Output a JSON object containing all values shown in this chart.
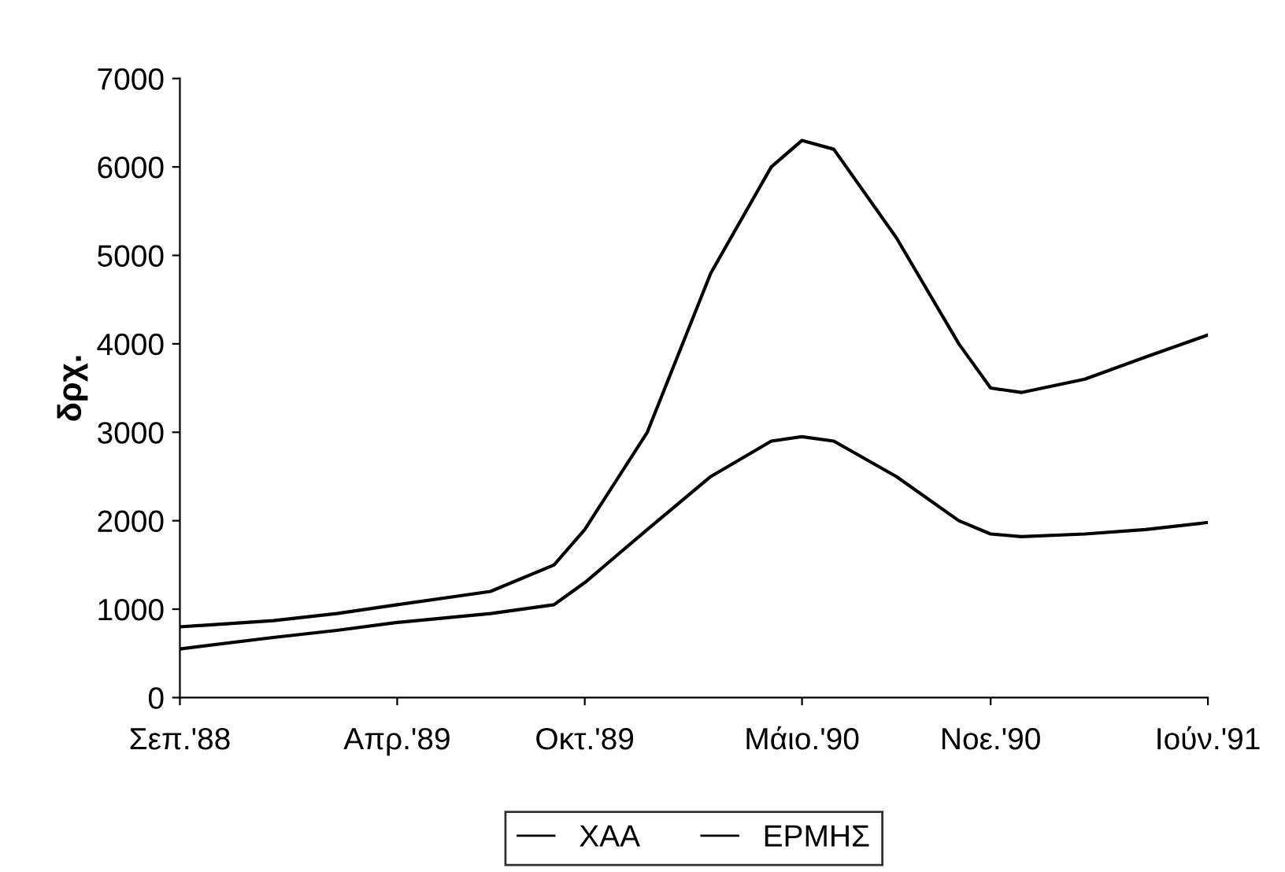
{
  "chart_data": {
    "type": "line",
    "ylabel": "δρχ.",
    "x": [
      "1988-09",
      "1988-12",
      "1989-02",
      "1989-04",
      "1989-07",
      "1989-09",
      "1989-10",
      "1989-12",
      "1990-02",
      "1990-04",
      "1990-05",
      "1990-06",
      "1990-08",
      "1990-10",
      "1990-11",
      "1990-12",
      "1991-02",
      "1991-04",
      "1991-06"
    ],
    "series": [
      {
        "name": "ΧΑΑ",
        "color": "#000000",
        "values": [
          800,
          870,
          950,
          1050,
          1200,
          1500,
          1900,
          3000,
          4800,
          6000,
          6300,
          6200,
          5200,
          4000,
          3500,
          3450,
          3600,
          3850,
          4100
        ]
      },
      {
        "name": "ΕΡΜΗΣ",
        "color": "#000000",
        "values": [
          550,
          680,
          760,
          850,
          950,
          1050,
          1300,
          1900,
          2500,
          2900,
          2950,
          2900,
          2500,
          2000,
          1850,
          1820,
          1850,
          1900,
          1980
        ]
      }
    ],
    "xlim": [
      "1988-09",
      "1991-06"
    ],
    "xticks": [
      {
        "value": "1988-09",
        "label": "Σεπ.'88"
      },
      {
        "value": "1989-04",
        "label": "Απρ.'89"
      },
      {
        "value": "1989-10",
        "label": "Οκτ.'89"
      },
      {
        "value": "1990-05",
        "label": "Μάιο.'90"
      },
      {
        "value": "1990-11",
        "label": "Νοε.'90"
      },
      {
        "value": "1991-06",
        "label": "Ιούν.'91"
      }
    ],
    "ylim": [
      0,
      7000
    ],
    "yticks": [
      0,
      1000,
      2000,
      3000,
      4000,
      5000,
      6000,
      7000
    ],
    "grid": false,
    "legend": "bottom",
    "line_style": "solid",
    "marker": "none"
  }
}
